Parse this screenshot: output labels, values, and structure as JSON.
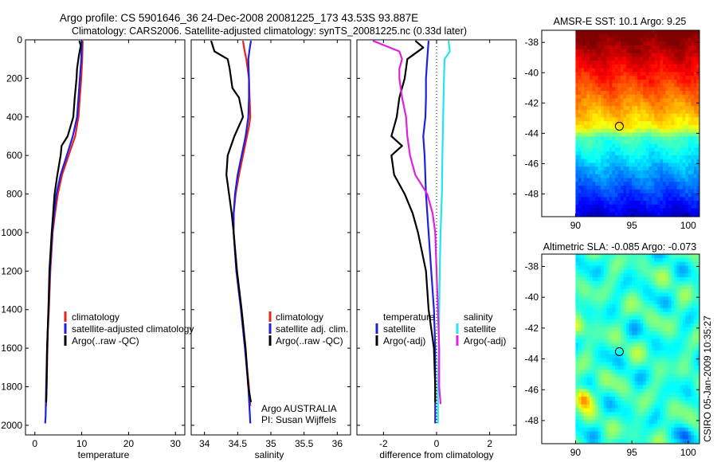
{
  "title_line1": "Argo profile: CS 5901646_36 24-Dec-2008 20081225_173 43.53S 93.887E",
  "title_line2": "Climatology: CARS2006. Satellite-adjusted climatology: synTS_20081225.nc (0.33d later)",
  "colors": {
    "climatology": "#e8201e",
    "satellite": "#1f1fe0",
    "argo": "#000000",
    "sal_satellite": "#22e6ee",
    "sal_argo": "#e020e0"
  },
  "chart_data": [
    {
      "type": "line",
      "panel": "temperature",
      "xlabel": "temperature",
      "xlim": [
        -2,
        32
      ],
      "xticks": [
        "0",
        "10",
        "20",
        "30"
      ],
      "ylim": [
        2050,
        0
      ],
      "yticks": [
        "0",
        "200",
        "400",
        "600",
        "800",
        "1000",
        "1200",
        "1400",
        "1600",
        "1800",
        "2000"
      ],
      "series": [
        {
          "name": "climatology",
          "depth": [
            5,
            100,
            200,
            300,
            400,
            500,
            600,
            700,
            800,
            900,
            1000,
            1200,
            1400,
            1500,
            1600,
            1800,
            1900
          ],
          "values": [
            10.2,
            10.1,
            9.9,
            9.6,
            9.3,
            8.6,
            7.2,
            5.8,
            4.9,
            4.3,
            3.8,
            3.3,
            3.0,
            2.8,
            2.7,
            2.5,
            2.4
          ]
        },
        {
          "name": "satellite-adjusted climatology",
          "depth": [
            5,
            100,
            200,
            300,
            400,
            500,
            600,
            700,
            800,
            900,
            1000,
            1200,
            1400,
            1600,
            1800,
            1950,
            1990
          ],
          "values": [
            10.0,
            9.9,
            9.6,
            9.3,
            9.0,
            8.1,
            6.8,
            5.5,
            4.6,
            4.1,
            3.7,
            3.2,
            2.9,
            2.6,
            2.4,
            2.3,
            2.2
          ]
        },
        {
          "name": "Argo(..raw -QC)",
          "depth": [
            5,
            30,
            80,
            150,
            200,
            300,
            400,
            500,
            550,
            600,
            700,
            800,
            900,
            1000,
            1200,
            1400,
            1600,
            1800,
            1880
          ],
          "values": [
            9.5,
            9.8,
            9.4,
            9.0,
            8.9,
            8.5,
            8.2,
            7.0,
            5.7,
            5.5,
            4.8,
            4.2,
            3.9,
            3.6,
            3.1,
            2.9,
            2.6,
            2.5,
            2.4
          ]
        }
      ],
      "legend": [
        "climatology",
        "satellite-adjusted climatology",
        "Argo(..raw -QC)"
      ]
    },
    {
      "type": "line",
      "panel": "salinity",
      "xlabel": "salinity",
      "xlim": [
        33.8,
        36.2
      ],
      "xticks": [
        "34",
        "34.5",
        "35",
        "35.5",
        "36"
      ],
      "ylim": [
        2050,
        0
      ],
      "series": [
        {
          "name": "climatology",
          "depth": [
            5,
            50,
            100,
            200,
            300,
            400,
            450,
            500,
            600,
            700,
            800,
            900,
            1000,
            1200,
            1400,
            1600,
            1800,
            1900
          ],
          "values": [
            34.58,
            34.6,
            34.63,
            34.67,
            34.68,
            34.69,
            34.67,
            34.64,
            34.58,
            34.52,
            34.47,
            34.44,
            34.44,
            34.48,
            34.55,
            34.61,
            34.67,
            34.69
          ]
        },
        {
          "name": "satellite adj. clim.",
          "depth": [
            5,
            50,
            100,
            200,
            300,
            400,
            500,
            600,
            700,
            800,
            900,
            1000,
            1200,
            1400,
            1600,
            1800,
            1990
          ],
          "values": [
            34.7,
            34.68,
            34.66,
            34.67,
            34.67,
            34.66,
            34.62,
            34.56,
            34.5,
            34.46,
            34.44,
            34.44,
            34.48,
            34.55,
            34.61,
            34.66,
            34.69
          ]
        },
        {
          "name": "Argo(..raw -QC)",
          "depth": [
            5,
            60,
            100,
            150,
            200,
            250,
            300,
            400,
            500,
            600,
            700,
            800,
            900,
            1000,
            1200,
            1400,
            1600,
            1800,
            1880
          ],
          "values": [
            34.1,
            34.15,
            34.35,
            34.38,
            34.4,
            34.42,
            34.52,
            34.58,
            34.45,
            34.35,
            34.33,
            34.37,
            34.41,
            34.44,
            34.49,
            34.56,
            34.62,
            34.66,
            34.7
          ]
        }
      ],
      "legend": [
        "climatology",
        "satellite adj. clim.",
        "Argo(..raw -QC)"
      ],
      "annotation": [
        "Argo AUSTRALIA",
        "PI: Susan Wijffels"
      ]
    },
    {
      "type": "line",
      "panel": "difference",
      "xlabel": "difference from climatology",
      "xlim": [
        -3,
        3
      ],
      "xticks": [
        "-2",
        "0",
        "2"
      ],
      "ylim": [
        2050,
        0
      ],
      "legend_columns": [
        {
          "heading": "temperature",
          "items": [
            "satellite",
            "Argo(-adj)"
          ]
        },
        {
          "heading": "salinity",
          "items": [
            "satellite",
            "Argo(-adj)"
          ]
        }
      ],
      "series": [
        {
          "name": "temperature satellite",
          "depth": [
            5,
            100,
            200,
            300,
            400,
            500,
            600,
            800,
            1000,
            1200,
            1400,
            1600,
            1800,
            1990
          ],
          "values": [
            -0.3,
            -0.35,
            -0.4,
            -0.4,
            -0.42,
            -0.5,
            -0.45,
            -0.4,
            -0.3,
            -0.2,
            -0.1,
            -0.05,
            -0.05,
            -0.05
          ]
        },
        {
          "name": "temperature Argo(-adj)",
          "depth": [
            5,
            40,
            100,
            200,
            300,
            400,
            500,
            550,
            600,
            700,
            800,
            900,
            1000,
            1200,
            1400,
            1600,
            1800,
            1880
          ],
          "values": [
            -0.8,
            -0.5,
            -1.1,
            -1.2,
            -1.4,
            -1.5,
            -1.7,
            -1.3,
            -1.7,
            -1.6,
            -1.2,
            -0.9,
            -0.7,
            -0.4,
            -0.3,
            -0.1,
            -0.05,
            -0.05
          ]
        },
        {
          "name": "salinity satellite",
          "depth": [
            5,
            60,
            100,
            200,
            400,
            600,
            800,
            1000,
            1200,
            1400,
            1600,
            1800,
            1990
          ],
          "values": [
            0.45,
            0.5,
            0.3,
            0.28,
            0.25,
            0.22,
            0.2,
            0.15,
            0.12,
            0.1,
            0.08,
            0.05,
            0.05
          ]
        },
        {
          "name": "salinity Argo(-adj)",
          "depth": [
            5,
            60,
            100,
            150,
            200,
            300,
            400,
            500,
            600,
            700,
            800,
            900,
            1000,
            1200,
            1400,
            1600,
            1800,
            1890
          ],
          "values": [
            -2.4,
            -1.4,
            -1.3,
            -1.4,
            -1.4,
            -1.3,
            -1.15,
            -1.1,
            -1.0,
            -0.8,
            -0.35,
            -0.15,
            -0.05,
            0.0,
            0.05,
            0.1,
            0.1,
            0.15
          ]
        }
      ]
    },
    {
      "type": "heatmap",
      "panel": "sst",
      "title": "AMSR-E SST: 10.1 Argo: 9.25",
      "xlim": [
        87,
        101
      ],
      "ylim": [
        -49.5,
        -37.2
      ],
      "xticks": [
        "90",
        "95",
        "100"
      ],
      "yticks": [
        "-38",
        "-40",
        "-42",
        "-44",
        "-46",
        "-48"
      ],
      "data_lon_range": [
        90,
        101
      ],
      "marker": {
        "lon": 93.887,
        "lat": -43.53
      }
    },
    {
      "type": "heatmap",
      "panel": "sla",
      "title": "Altimetric SLA: -0.085 Argo: -0.073",
      "xlim": [
        87,
        101
      ],
      "ylim": [
        -49.5,
        -37.2
      ],
      "xticks": [
        "90",
        "95",
        "100"
      ],
      "yticks": [
        "-38",
        "-40",
        "-42",
        "-44",
        "-46",
        "-48"
      ],
      "data_lon_range": [
        90,
        101
      ],
      "marker": {
        "lon": 93.887,
        "lat": -43.53
      }
    }
  ],
  "stamp": "CSIRO 05-Jan-2009 10:35:27"
}
